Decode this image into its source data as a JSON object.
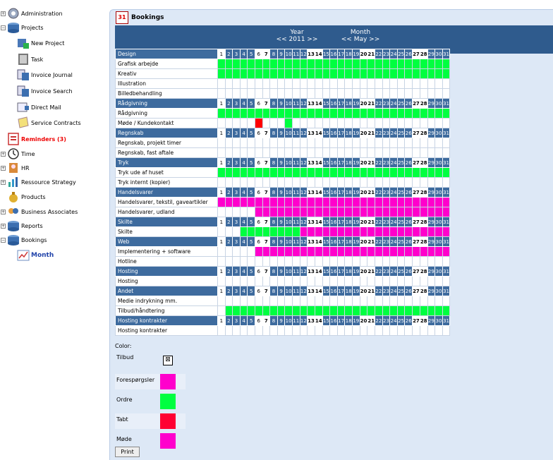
{
  "sidebar": {
    "items": [
      {
        "label": "Administration",
        "icon": "gear-icon"
      },
      {
        "label": "Projects",
        "icon": "database-icon"
      },
      {
        "label": "New Project",
        "icon": "new-project-icon"
      },
      {
        "label": "Task",
        "icon": "task-icon"
      },
      {
        "label": "Invoice Journal",
        "icon": "invoice-journal-icon"
      },
      {
        "label": "Invoice Search",
        "icon": "invoice-search-icon"
      },
      {
        "label": "Direct Mail",
        "icon": "direct-mail-icon"
      },
      {
        "label": "Service Contracts",
        "icon": "service-contracts-icon"
      },
      {
        "label": "Reminders (3)",
        "icon": "reminders-icon"
      },
      {
        "label": "Time",
        "icon": "clock-icon"
      },
      {
        "label": "HR",
        "icon": "hr-icon"
      },
      {
        "label": "Ressource Strategy",
        "icon": "chart-icon"
      },
      {
        "label": "Products",
        "icon": "products-icon"
      },
      {
        "label": "Business Associates",
        "icon": "handshake-icon"
      },
      {
        "label": "Reports",
        "icon": "reports-icon"
      },
      {
        "label": "Bookings",
        "icon": "bookings-icon"
      },
      {
        "label": "Month",
        "icon": "month-chart-icon"
      }
    ]
  },
  "main": {
    "title": "Bookings",
    "cal_icon_text": "31",
    "nav": {
      "year_label": "Year",
      "year_value": "<< 2011 >>",
      "month_label": "Month",
      "month_value": "<< May >>"
    }
  },
  "days": [
    "1",
    "2",
    "3",
    "4",
    "5",
    "6",
    "7",
    "8",
    "9",
    "10",
    "11",
    "12",
    "13",
    "14",
    "15",
    "16",
    "17",
    "18",
    "19",
    "20",
    "21",
    "22",
    "23",
    "24",
    "25",
    "26",
    "27",
    "28",
    "29",
    "30",
    "31"
  ],
  "groups": [
    {
      "name": "Design",
      "rows": [
        {
          "label": "Grafisk arbejde",
          "fill": "g",
          "from": 1,
          "to": 31
        },
        {
          "label": "Kreativ",
          "fill": "g",
          "from": 1,
          "to": 31
        },
        {
          "label": "Illustration",
          "fill": "",
          "from": 0,
          "to": 0
        },
        {
          "label": "Billedbehandling",
          "fill": "",
          "from": 0,
          "to": 0
        }
      ]
    },
    {
      "name": "Rådgivning",
      "rows": [
        {
          "label": "Rådgivning",
          "fill": "g",
          "from": 1,
          "to": 31
        },
        {
          "label": "Møde / Kundekontakt",
          "fill": "mixed",
          "from": 0,
          "to": 0
        }
      ]
    },
    {
      "name": "Regnskab",
      "rows": [
        {
          "label": "Regnskab, projekt timer",
          "fill": "",
          "from": 0,
          "to": 0
        },
        {
          "label": "Regnskab, fast aftale",
          "fill": "",
          "from": 0,
          "to": 0
        }
      ]
    },
    {
      "name": "Tryk",
      "rows": [
        {
          "label": "Tryk ude af huset",
          "fill": "g",
          "from": 1,
          "to": 31
        },
        {
          "label": "Tryk internt (kopier)",
          "fill": "",
          "from": 0,
          "to": 0
        }
      ]
    },
    {
      "name": "Handelsvarer",
      "rows": [
        {
          "label": "Handelsvarer, tekstil, gaveartikler",
          "fill": "m",
          "from": 1,
          "to": 31
        },
        {
          "label": "Handelsvarer, udland",
          "fill": "m",
          "from": 6,
          "to": 31
        }
      ]
    },
    {
      "name": "Skilte",
      "rows": [
        {
          "label": "Skilte",
          "fill": "gm",
          "from": 4,
          "to": 31
        }
      ]
    },
    {
      "name": "Web",
      "rows": [
        {
          "label": "Implementering + software",
          "fill": "m",
          "from": 6,
          "to": 31
        },
        {
          "label": "Hotline",
          "fill": "",
          "from": 0,
          "to": 0
        }
      ]
    },
    {
      "name": "Hosting",
      "rows": [
        {
          "label": "Hosting",
          "fill": "",
          "from": 0,
          "to": 0
        }
      ]
    },
    {
      "name": "Andet",
      "rows": [
        {
          "label": "Medie indrykning mm.",
          "fill": "",
          "from": 0,
          "to": 0
        },
        {
          "label": "Tilbud/håndtering",
          "fill": "g",
          "from": 2,
          "to": 31
        }
      ]
    },
    {
      "name": "Hosting kontrakter",
      "rows": [
        {
          "label": "Hosting kontrakter",
          "fill": "",
          "from": 0,
          "to": 0
        }
      ]
    }
  ],
  "legend": {
    "title": "Color:",
    "items": [
      {
        "label": "Tilbud",
        "color": "#ffffff"
      },
      {
        "label": "Forespørgsler",
        "color": "#ff00cc"
      },
      {
        "label": "Ordre",
        "color": "#00ff40"
      },
      {
        "label": "Tabt",
        "color": "#ff0033"
      },
      {
        "label": "Møde",
        "color": "#ff00cc"
      }
    ]
  },
  "print_label": "Print"
}
